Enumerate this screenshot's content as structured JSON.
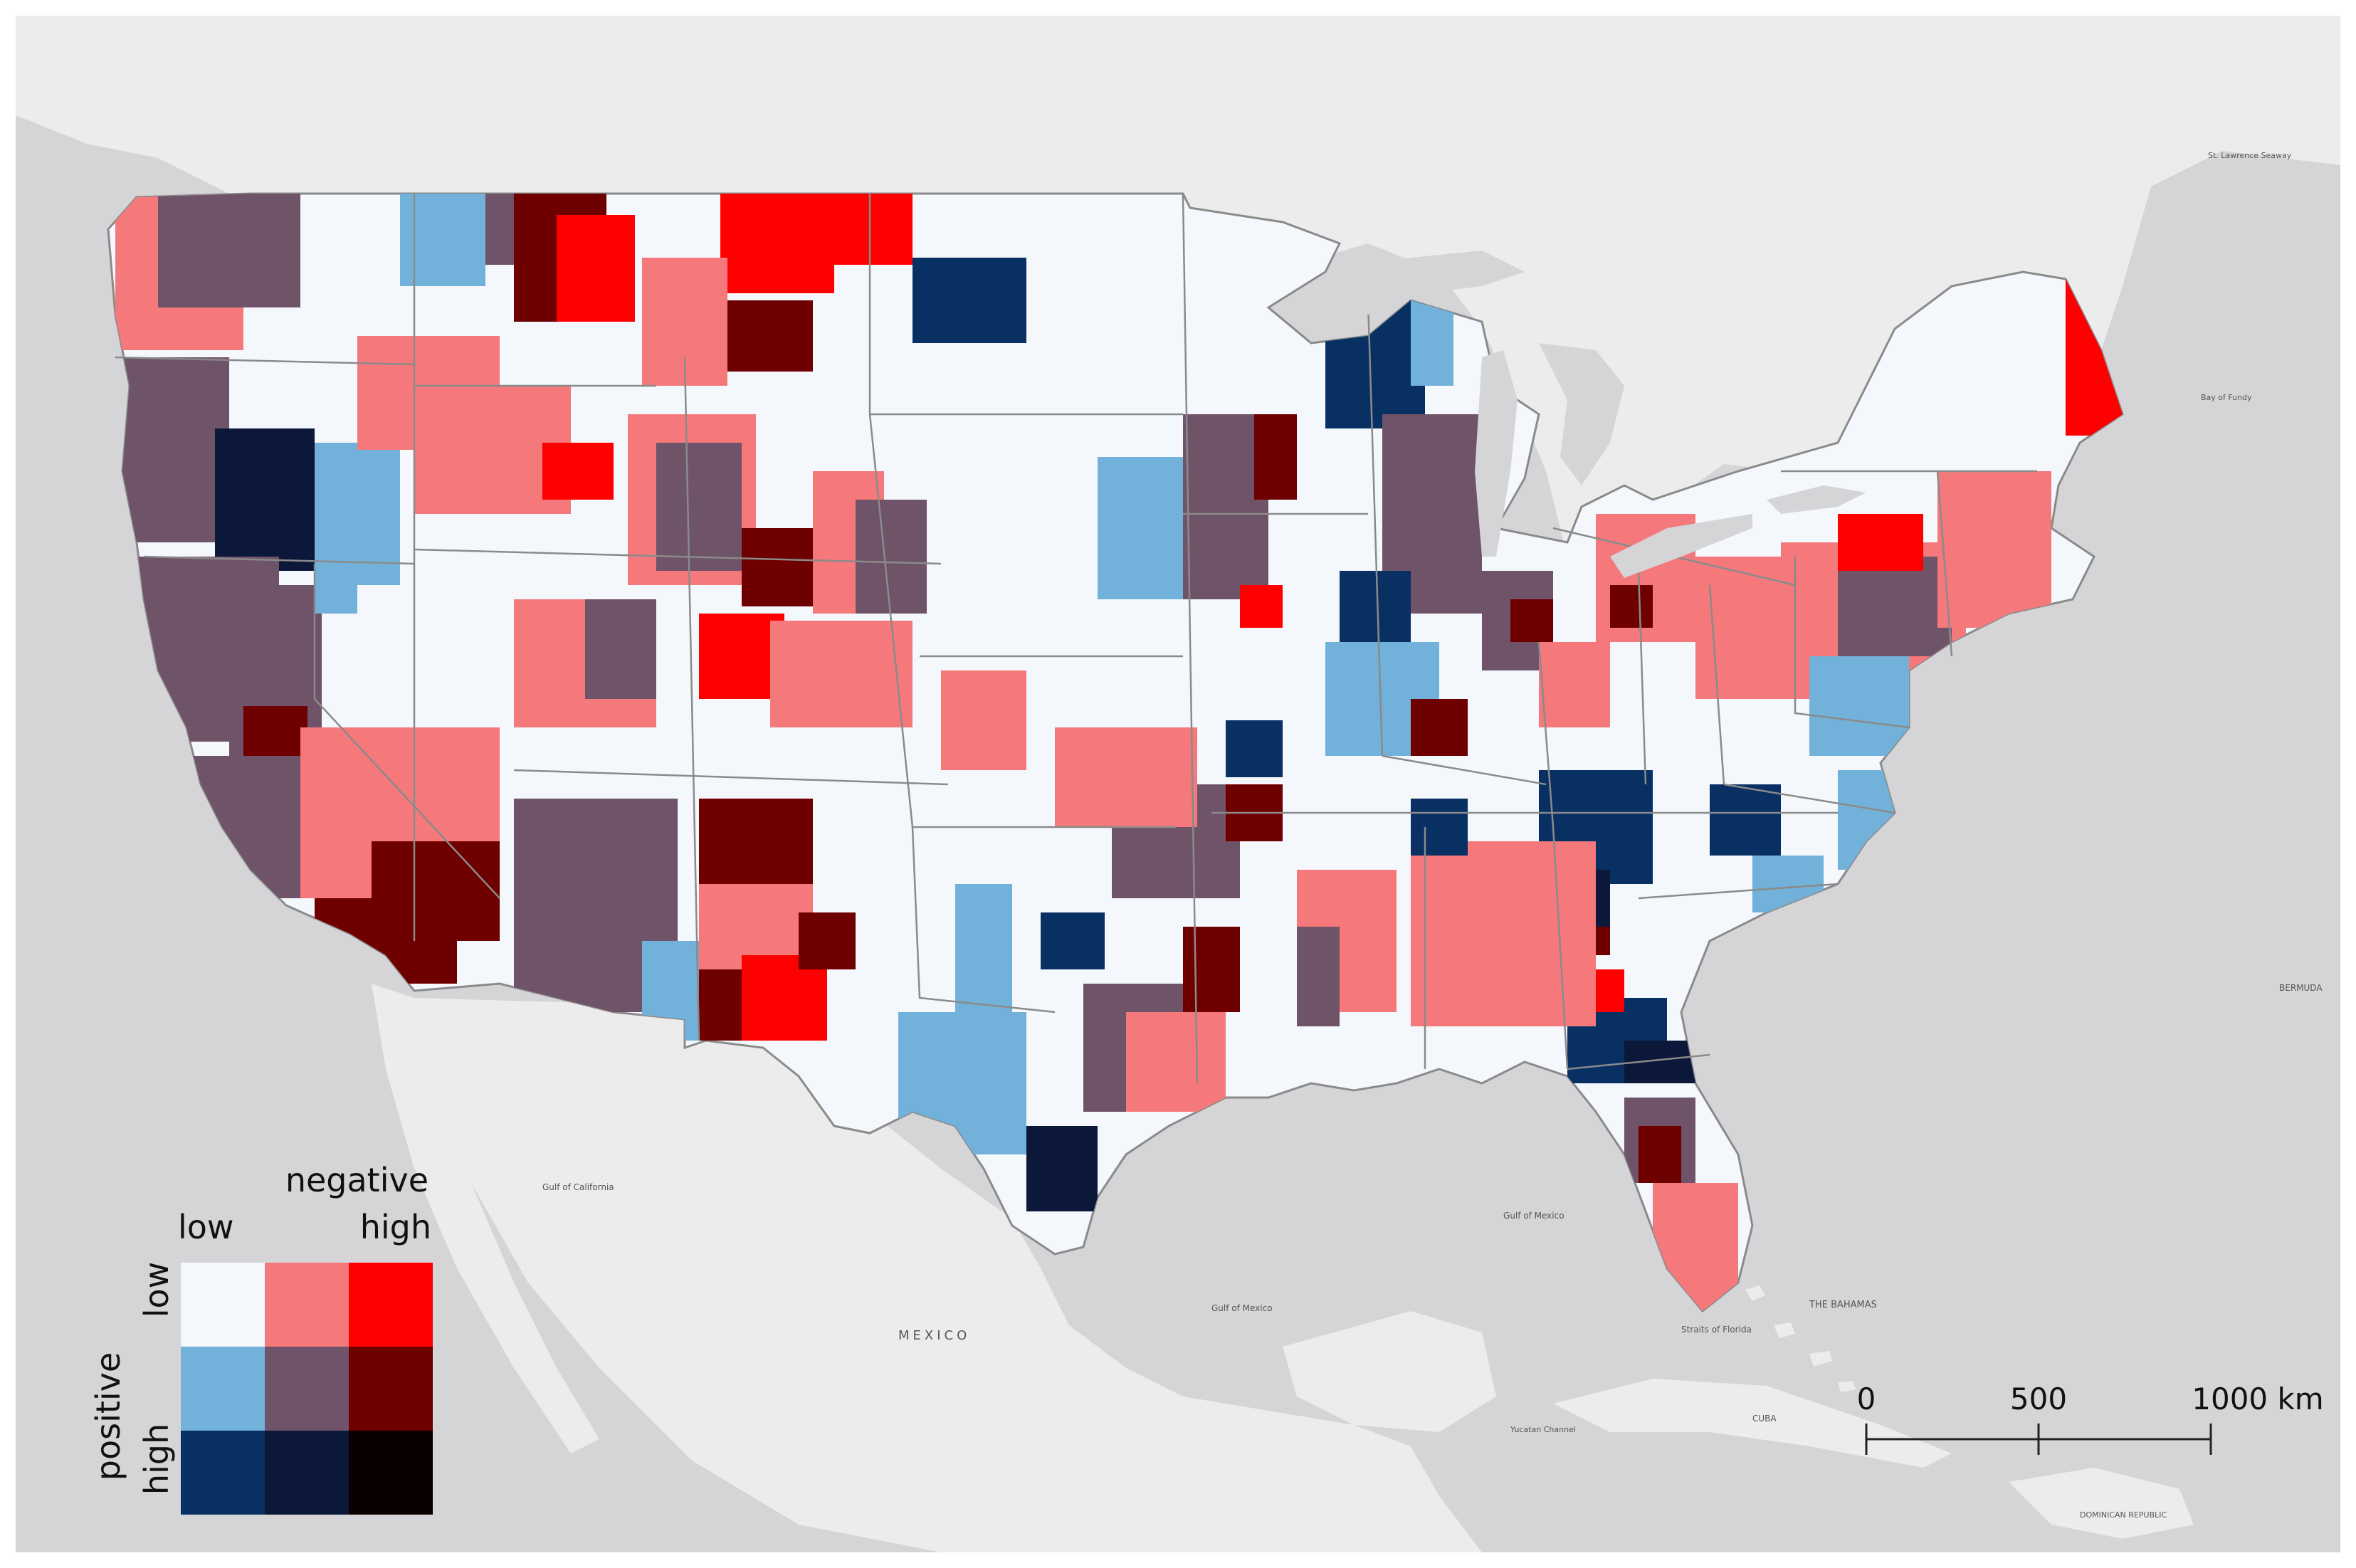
{
  "map": {
    "labels": {
      "mexico": "MEXICO",
      "gulf_california": "Gulf of California",
      "gulf_mexico": "Gulf of Mexico",
      "gulf_mexico_2": "Gulf of Mexico",
      "straits_florida": "Straits of Florida",
      "bahamas": "THE BAHAMAS",
      "cuba": "CUBA",
      "bermuda": "BERMUDA",
      "dominican": "DOMINICAN REPUBLIC",
      "yucatan": "Yucatan Channel",
      "st_lawrence": "St. Lawrence Seaway",
      "bay_fundy": "Bay of Fundy"
    },
    "colors": {
      "water": "#d5d5d8",
      "land": "#ececec",
      "state_border": "#8a8a8a"
    }
  },
  "legend": {
    "negative_label": "negative",
    "positive_label": "positive",
    "low_top": "low",
    "high_top": "high",
    "low_side": "low",
    "high_side": "high",
    "cells": [
      [
        "#f4f8fd",
        "#f5797b",
        "#ff0000"
      ],
      [
        "#72b1d9",
        "#6f5368",
        "#6e0000"
      ],
      [
        "#083063",
        "#0c1839",
        "#0a0000"
      ]
    ]
  },
  "scale": {
    "tick_0": "0",
    "tick_500": "500",
    "tick_1000": "1000 km"
  }
}
